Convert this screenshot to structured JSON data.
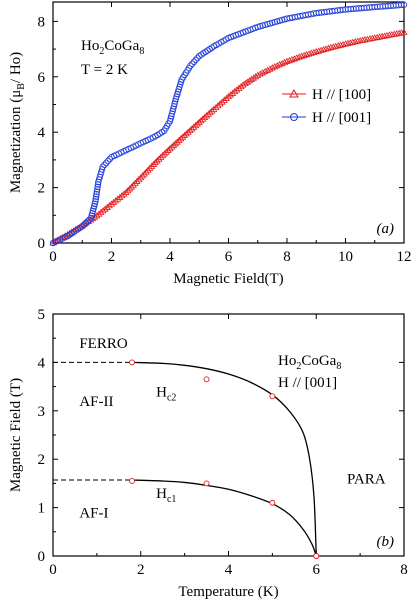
{
  "chart_data": [
    {
      "type": "scatter",
      "panel_label": "(a)",
      "xlabel": "Magnetic Field(T)",
      "ylabel_main": "Magnetization (μ",
      "ylabel_sub": "B",
      "ylabel_tail": "/ Ho)",
      "xlim": [
        0,
        12
      ],
      "ylim": [
        0,
        8.7
      ],
      "xticks": [
        0,
        2,
        4,
        6,
        8,
        10,
        12
      ],
      "yticks": [
        0,
        2,
        4,
        6,
        8
      ],
      "annotation": {
        "compound": [
          "Ho",
          "2",
          "CoGa",
          "8"
        ],
        "condition": "T = 2 K"
      },
      "legend_position": "right",
      "series": [
        {
          "name": "H // [100]",
          "color": "#e41a1c",
          "marker": "triangle",
          "points": [
            [
              0,
              0
            ],
            [
              0.5,
              0.3
            ],
            [
              1,
              0.62
            ],
            [
              1.5,
              0.98
            ],
            [
              2,
              1.4
            ],
            [
              2.5,
              1.82
            ],
            [
              3,
              2.35
            ],
            [
              3.5,
              2.9
            ],
            [
              4,
              3.4
            ],
            [
              4.5,
              3.88
            ],
            [
              5,
              4.35
            ],
            [
              5.5,
              4.82
            ],
            [
              6,
              5.28
            ],
            [
              6.5,
              5.7
            ],
            [
              7,
              6.05
            ],
            [
              7.5,
              6.32
            ],
            [
              8,
              6.55
            ],
            [
              8.5,
              6.74
            ],
            [
              9,
              6.9
            ],
            [
              9.5,
              7.05
            ],
            [
              10,
              7.18
            ],
            [
              10.5,
              7.3
            ],
            [
              11,
              7.4
            ],
            [
              11.5,
              7.5
            ],
            [
              12,
              7.6
            ]
          ]
        },
        {
          "name": "H // [001]",
          "color": "#1f3bd9",
          "marker": "circle",
          "points": [
            [
              0,
              0
            ],
            [
              0.5,
              0.25
            ],
            [
              1,
              0.6
            ],
            [
              1.3,
              0.9
            ],
            [
              1.45,
              1.5
            ],
            [
              1.55,
              2.2
            ],
            [
              1.7,
              2.75
            ],
            [
              2,
              3.1
            ],
            [
              2.5,
              3.35
            ],
            [
              3,
              3.6
            ],
            [
              3.5,
              3.85
            ],
            [
              3.8,
              4.05
            ],
            [
              4,
              4.4
            ],
            [
              4.2,
              5.2
            ],
            [
              4.4,
              5.9
            ],
            [
              4.7,
              6.4
            ],
            [
              5,
              6.75
            ],
            [
              5.5,
              7.1
            ],
            [
              6,
              7.4
            ],
            [
              7,
              7.8
            ],
            [
              8,
              8.1
            ],
            [
              9,
              8.3
            ],
            [
              10,
              8.43
            ],
            [
              11,
              8.52
            ],
            [
              12,
              8.6
            ]
          ]
        }
      ]
    },
    {
      "type": "line",
      "panel_label": "(b)",
      "xlabel": "Temperature (K)",
      "ylabel": "Magnetic Field (T)",
      "xlim": [
        0,
        8
      ],
      "ylim": [
        0,
        5
      ],
      "xticks": [
        0,
        2,
        4,
        6,
        8
      ],
      "yticks": [
        0,
        1,
        2,
        3,
        4,
        5
      ],
      "annotation": {
        "compound": [
          "Ho",
          "2",
          "CoGa",
          "8"
        ],
        "condition": "H // [001]"
      },
      "region_labels": [
        {
          "text": "FERRO",
          "x": 0.6,
          "y": 4.3
        },
        {
          "text": "AF-II",
          "x": 0.6,
          "y": 3.1
        },
        {
          "text": "AF-I",
          "x": 0.6,
          "y": 0.8
        },
        {
          "text": "PARA",
          "x": 6.7,
          "y": 1.5
        }
      ],
      "curve_labels": [
        {
          "main": "H",
          "sub": "c2",
          "x": 2.35,
          "y": 3.3
        },
        {
          "main": "H",
          "sub": "c1",
          "x": 2.35,
          "y": 1.2
        }
      ],
      "series": [
        {
          "name": "Hc2",
          "color": "#000000",
          "line": [
            [
              1.8,
              4.0
            ],
            [
              2.5,
              3.98
            ],
            [
              3.0,
              3.94
            ],
            [
              3.5,
              3.87
            ],
            [
              4.0,
              3.76
            ],
            [
              4.5,
              3.59
            ],
            [
              5.0,
              3.33
            ],
            [
              5.4,
              2.98
            ],
            [
              5.7,
              2.55
            ],
            [
              5.85,
              2.0
            ],
            [
              5.95,
              1.2
            ],
            [
              6.0,
              0.0
            ]
          ],
          "dashed": [
            [
              0,
              4.0
            ],
            [
              1.8,
              4.0
            ]
          ],
          "markers": [
            [
              1.8,
              4.0
            ],
            [
              3.5,
              3.65
            ],
            [
              5.0,
              3.3
            ],
            [
              6.0,
              0.0
            ]
          ]
        },
        {
          "name": "Hc1",
          "color": "#000000",
          "line": [
            [
              1.8,
              1.57
            ],
            [
              2.5,
              1.55
            ],
            [
              3.0,
              1.52
            ],
            [
              3.5,
              1.46
            ],
            [
              4.0,
              1.38
            ],
            [
              4.5,
              1.25
            ],
            [
              5.0,
              1.08
            ],
            [
              5.4,
              0.85
            ],
            [
              5.7,
              0.55
            ],
            [
              5.9,
              0.25
            ],
            [
              6.0,
              0.0
            ]
          ],
          "dashed": [
            [
              0,
              1.57
            ],
            [
              1.8,
              1.57
            ]
          ],
          "markers": [
            [
              1.8,
              1.55
            ],
            [
              3.5,
              1.5
            ],
            [
              5.0,
              1.1
            ],
            [
              6.0,
              0.0
            ]
          ]
        }
      ],
      "marker_color": "#e41a1c"
    }
  ]
}
